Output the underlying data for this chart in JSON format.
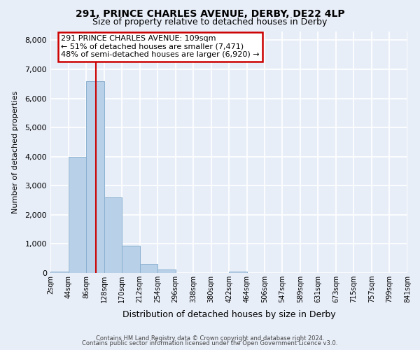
{
  "title1": "291, PRINCE CHARLES AVENUE, DERBY, DE22 4LP",
  "title2": "Size of property relative to detached houses in Derby",
  "xlabel": "Distribution of detached houses by size in Derby",
  "ylabel": "Number of detached properties",
  "bin_edges": [
    2,
    44,
    86,
    128,
    170,
    212,
    254,
    296,
    338,
    380,
    422,
    464,
    506,
    547,
    589,
    631,
    673,
    715,
    757,
    799,
    841
  ],
  "bin_labels": [
    "2sqm",
    "44sqm",
    "86sqm",
    "128sqm",
    "170sqm",
    "212sqm",
    "254sqm",
    "296sqm",
    "338sqm",
    "380sqm",
    "422sqm",
    "464sqm",
    "506sqm",
    "547sqm",
    "589sqm",
    "631sqm",
    "673sqm",
    "715sqm",
    "757sqm",
    "799sqm",
    "841sqm"
  ],
  "counts": [
    60,
    4000,
    6600,
    2600,
    950,
    320,
    130,
    0,
    0,
    0,
    60,
    0,
    0,
    0,
    0,
    0,
    0,
    0,
    0,
    0
  ],
  "bar_color": "#b8d0e8",
  "bar_edge_color": "#8ab0d0",
  "property_line_x": 109,
  "property_line_color": "#cc0000",
  "annotation_line1": "291 PRINCE CHARLES AVENUE: 109sqm",
  "annotation_line2": "← 51% of detached houses are smaller (7,471)",
  "annotation_line3": "48% of semi-detached houses are larger (6,920) →",
  "annotation_box_color": "#cc0000",
  "ylim": [
    0,
    8300
  ],
  "yticks": [
    0,
    1000,
    2000,
    3000,
    4000,
    5000,
    6000,
    7000,
    8000
  ],
  "footer1": "Contains HM Land Registry data © Crown copyright and database right 2024.",
  "footer2": "Contains public sector information licensed under the Open Government Licence v3.0.",
  "bg_color": "#e8eef8",
  "plot_bg_color": "#e8eef8"
}
